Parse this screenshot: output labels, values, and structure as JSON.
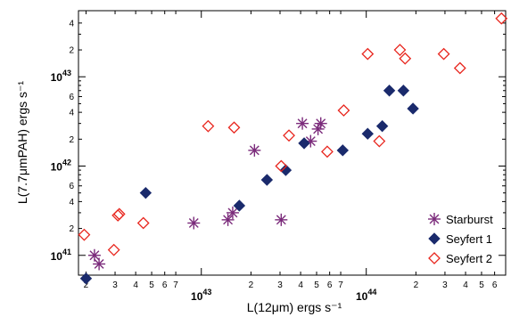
{
  "chart_data": {
    "type": "scatter",
    "xlabel": "L(12μm) ergs s⁻¹",
    "ylabel": "L(7.7μmPAH) ergs s⁻¹",
    "xscale": "log",
    "yscale": "log",
    "xlim": [
      1.8e+42,
      7e+44
    ],
    "ylim": [
      6e+40,
      5.5e+43
    ],
    "legend_position": "bottom-right",
    "x_major_ticks": [
      {
        "value": 1e+43,
        "mantissa": "10",
        "exponent": "43"
      },
      {
        "value": 1e+44,
        "mantissa": "10",
        "exponent": "44"
      }
    ],
    "y_major_ticks": [
      {
        "value": 1e+41,
        "mantissa": "10",
        "exponent": "41"
      },
      {
        "value": 1e+42,
        "mantissa": "10",
        "exponent": "42"
      },
      {
        "value": 1e+43,
        "mantissa": "10",
        "exponent": "43"
      }
    ],
    "x_minor_ticks": [
      {
        "value": 2e+42,
        "label": "2"
      },
      {
        "value": 3e+42,
        "label": "3"
      },
      {
        "value": 4e+42,
        "label": "4"
      },
      {
        "value": 5e+42,
        "label": "5"
      },
      {
        "value": 6e+42,
        "label": "6"
      },
      {
        "value": 7e+42,
        "label": "7"
      },
      {
        "value": 2e+43,
        "label": "2"
      },
      {
        "value": 3e+43,
        "label": "3"
      },
      {
        "value": 4e+43,
        "label": "4"
      },
      {
        "value": 5e+43,
        "label": "5"
      },
      {
        "value": 6e+43,
        "label": "6"
      },
      {
        "value": 7e+43,
        "label": "7"
      },
      {
        "value": 2e+44,
        "label": "2"
      },
      {
        "value": 3e+44,
        "label": "3"
      },
      {
        "value": 4e+44,
        "label": "4"
      },
      {
        "value": 5e+44,
        "label": "5"
      },
      {
        "value": 6e+44,
        "label": "6"
      }
    ],
    "y_minor_ticks": [
      {
        "value": 2e+41,
        "label": "2"
      },
      {
        "value": 4e+41,
        "label": "4"
      },
      {
        "value": 6e+41,
        "label": "6"
      },
      {
        "value": 2e+42,
        "label": "2"
      },
      {
        "value": 4e+42,
        "label": "4"
      },
      {
        "value": 6e+42,
        "label": "6"
      },
      {
        "value": 2e+43,
        "label": "2"
      },
      {
        "value": 4e+43,
        "label": "4"
      }
    ],
    "series": [
      {
        "name": "Starburst",
        "marker": "asterisk",
        "color": "#7b2b7b",
        "points": [
          [
            2.25e+42,
            1e+41
          ],
          [
            2.4e+42,
            8e+40
          ],
          [
            9e+42,
            2.3e+41
          ],
          [
            1.45e+43,
            2.5e+41
          ],
          [
            1.55e+43,
            3e+41
          ],
          [
            2.1e+43,
            1.5e+42
          ],
          [
            3.05e+43,
            2.5e+41
          ],
          [
            4.1e+43,
            3e+42
          ],
          [
            4.6e+43,
            1.9e+42
          ],
          [
            5.1e+43,
            2.6e+42
          ],
          [
            5.3e+43,
            3e+42
          ]
        ]
      },
      {
        "name": "Seyfert 1",
        "marker": "filled-diamond",
        "color": "#1a2a6c",
        "points": [
          [
            2e+42,
            5.5e+40
          ],
          [
            4.6e+42,
            5e+41
          ],
          [
            1.7e+43,
            3.6e+41
          ],
          [
            2.5e+43,
            7e+41
          ],
          [
            3.25e+43,
            9e+41
          ],
          [
            4.2e+43,
            1.8e+42
          ],
          [
            7.2e+43,
            1.5e+42
          ],
          [
            1.02e+44,
            2.3e+42
          ],
          [
            1.25e+44,
            2.8e+42
          ],
          [
            1.38e+44,
            7e+42
          ],
          [
            1.68e+44,
            7e+42
          ],
          [
            1.92e+44,
            4.4e+42
          ]
        ]
      },
      {
        "name": "Seyfert 2",
        "marker": "open-diamond",
        "color": "#e8261e",
        "points": [
          [
            1.95e+42,
            1.7e+41
          ],
          [
            2.95e+42,
            1.15e+41
          ],
          [
            3.12e+42,
            2.8e+41
          ],
          [
            3.18e+42,
            2.9e+41
          ],
          [
            4.45e+42,
            2.3e+41
          ],
          [
            1.1e+43,
            2.8e+42
          ],
          [
            1.58e+43,
            2.7e+42
          ],
          [
            3.05e+43,
            1e+42
          ],
          [
            3.4e+43,
            2.2e+42
          ],
          [
            5.8e+43,
            1.45e+42
          ],
          [
            7.3e+43,
            4.2e+42
          ],
          [
            1.02e+44,
            1.8e+43
          ],
          [
            1.2e+44,
            1.9e+42
          ],
          [
            1.6e+44,
            2e+43
          ],
          [
            1.72e+44,
            1.6e+43
          ],
          [
            2.95e+44,
            1.8e+43
          ],
          [
            3.7e+44,
            1.25e+43
          ],
          [
            6.6e+44,
            4.5e+43
          ]
        ]
      }
    ]
  }
}
